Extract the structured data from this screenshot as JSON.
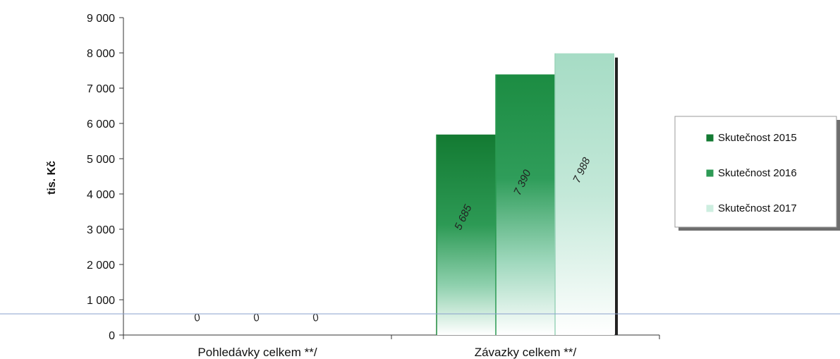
{
  "chart_data": {
    "type": "bar",
    "ylabel": "tis. Kč",
    "xlabel": "",
    "title": "",
    "ylim": [
      0,
      9000
    ],
    "yticks": [
      0,
      1000,
      2000,
      3000,
      4000,
      5000,
      6000,
      7000,
      8000,
      9000
    ],
    "ytick_labels": [
      "0",
      "1 000",
      "2 000",
      "3 000",
      "4 000",
      "5 000",
      "6 000",
      "7 000",
      "8 000",
      "9 000"
    ],
    "categories": [
      "Pohledávky celkem **/",
      "Závazky celkem **/"
    ],
    "series": [
      {
        "name": "Skutečnost 2015",
        "values": [
          0,
          5685
        ],
        "labels": [
          "0",
          "5 685"
        ],
        "color": "#1e8a3c"
      },
      {
        "name": "Skutečnost 2016",
        "values": [
          0,
          7390
        ],
        "labels": [
          "0",
          "7 390"
        ],
        "color": "#2a9a52"
      },
      {
        "name": "Skutečnost 2017",
        "values": [
          0,
          7988
        ],
        "labels": [
          "0",
          "7 988"
        ],
        "color": "#a9dcc6"
      }
    ],
    "legend_position": "right",
    "grid": false
  }
}
